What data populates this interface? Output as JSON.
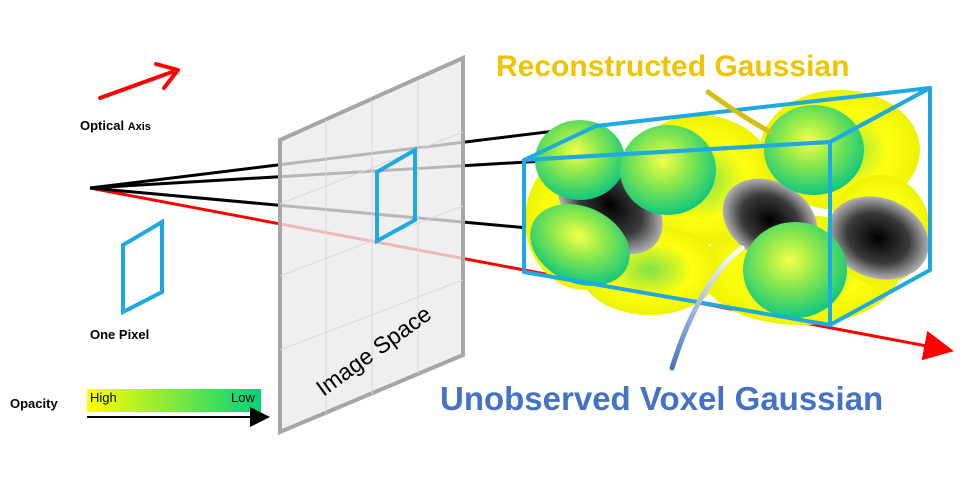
{
  "labels": {
    "optical_axis_main": "Optical ",
    "optical_axis_small": "Axis",
    "one_pixel": "One Pixel",
    "opacity": "Opacity",
    "opacity_high": "High",
    "opacity_low": "Low",
    "image_space": "Image Space",
    "reconstructed": "Reconstructed Gaussian",
    "unobserved": "Unobserved Voxel Gaussian"
  },
  "colors": {
    "axis_red": "#ff0000",
    "frame_blue": "#1fa9e1",
    "plane_gray": "#a6a6a6",
    "recon_text": "#f2c300",
    "unobs_text": "#4472c4",
    "gaussian_green": "#22d36a",
    "gaussian_yellow": "#ffff00",
    "gaussian_dark": "#1a1a1a"
  },
  "opacity_scale": {
    "high_color": "#ffff00",
    "low_color": "#00d27a"
  }
}
